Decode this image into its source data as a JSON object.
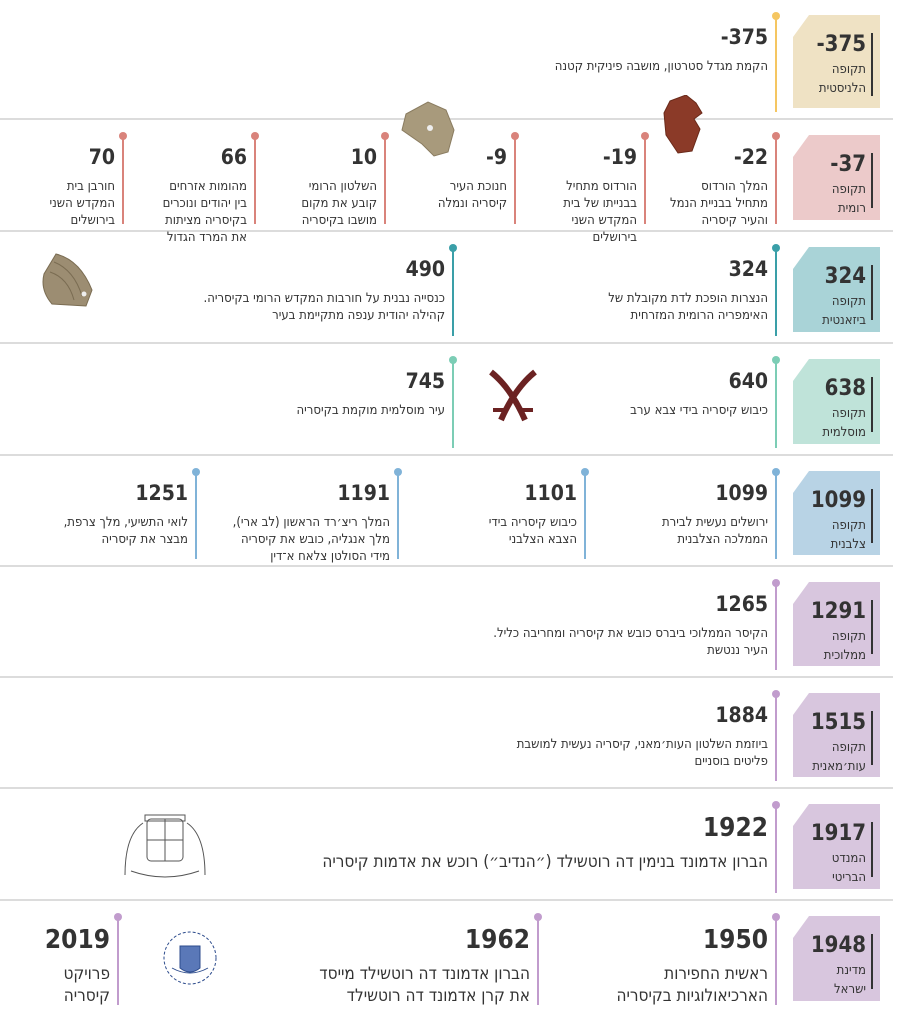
{
  "rows": [
    {
      "period": {
        "year": "-375",
        "label": "תקופה\nהלניסטית"
      },
      "colors": {
        "box": "#efe2c4",
        "line": "#f5c661"
      },
      "events": [
        {
          "year": "-375",
          "text": "הקמת מגדל סטרטון, מושבה פיניקית קטנה"
        }
      ]
    },
    {
      "period": {
        "year": "-37",
        "label": "תקופה\nרומית"
      },
      "colors": {
        "box": "#eccaca",
        "line": "#d9837b"
      },
      "events": [
        {
          "year": "-22",
          "text": "המלך הורדוס\nמתחיל בבניית הנמל\nוהעיר קיסריה"
        },
        {
          "year": "-19",
          "text": "הורדוס מתחיל\nבבנייתו של בית\nהמקדש השני\nבירושלים"
        },
        {
          "year": "-9",
          "text": "חנוכת העיר\nקיסריה ונמלה"
        },
        {
          "year": "10",
          "text": "השלטון הרומי\nקובע את מקום\nמושבו בקיסריה"
        },
        {
          "year": "66",
          "text": "מהומות אזרחים\nבין יהודים ונוכרים\nבקיסריה מציתות\nאת המרד הגדול"
        },
        {
          "year": "70",
          "text": "חורבן בית\nהמקדש השני\nבירושלים"
        }
      ]
    },
    {
      "period": {
        "year": "324",
        "label": "תקופה\nביזאנטית"
      },
      "colors": {
        "box": "#a9d3d7",
        "line": "#3a9fa8"
      },
      "events": [
        {
          "year": "324",
          "text": "הנצרות הופכת לדת מקובלת של\nהאימפריה הרומית המזרחית"
        },
        {
          "year": "490",
          "text": "כנסייה נבנית על חורבות המקדש הרומי בקיסריה.\nקהילה יהודית ענפה מתקיימת בעיר"
        }
      ]
    },
    {
      "period": {
        "year": "638",
        "label": "תקופה\nמוסלמית\nקדומה"
      },
      "colors": {
        "box": "#bfe3d9",
        "line": "#7ccdb5"
      },
      "events": [
        {
          "year": "640",
          "text": "כיבוש קיסריה בידי צבא ערב"
        },
        {
          "year": "745",
          "text": "עיר מוסלמית מוקמת בקיסריה"
        }
      ]
    },
    {
      "period": {
        "year": "1099",
        "label": "תקופה\nצלבנית"
      },
      "colors": {
        "box": "#b8d3e5",
        "line": "#80b3d8"
      },
      "events": [
        {
          "year": "1099",
          "text": "ירושלים נעשית לבירת\nהממלכה הצלבנית"
        },
        {
          "year": "1101",
          "text": "כיבוש קיסריה בידי\nהצבא הצלבני"
        },
        {
          "year": "1191",
          "text": "המלך ריצ׳רד הראשון (לב ארי),\nמלך אנגליה, כובש את קיסריה\nמידי הסולטן צלאח א־דין"
        },
        {
          "year": "1251",
          "text": "לואי התשיעי, מלך צרפת,\nמבצר את קיסריה"
        }
      ]
    },
    {
      "period": {
        "year": "1291",
        "label": "תקופה\nממלוכית"
      },
      "colors": {
        "box": "#d8c6de",
        "line": "#c19ccd"
      },
      "events": [
        {
          "year": "1265",
          "text": "הקיסר הממלוכי ביברס כובש את קיסריה ומחריבה כליל.\nהעיר ננטשת"
        }
      ]
    },
    {
      "period": {
        "year": "1515",
        "label": "תקופה\nעות׳מאנית"
      },
      "colors": {
        "box": "#d8c6de",
        "line": "#c19ccd"
      },
      "events": [
        {
          "year": "1884",
          "text": "ביוזמת השלטון העות׳מאני, קיסריה נעשית למושבת\nפליטים בוסניים"
        }
      ]
    },
    {
      "period": {
        "year": "1917",
        "label": "המנדט\nהבריטי"
      },
      "colors": {
        "box": "#d8c6de",
        "line": "#c19ccd"
      },
      "events": [
        {
          "year": "1922",
          "text": "הברון אדמונד בנימין דה רוטשילד (״הנדיב״) רוכש את אדמות קיסריה"
        }
      ]
    },
    {
      "period": {
        "year": "1948",
        "label": "מדינת\nישראל"
      },
      "colors": {
        "box": "#d8c6de",
        "line": "#c19ccd"
      },
      "events": [
        {
          "year": "1950",
          "text": "ראשית החפירות\nהארכיאולוגיות בקיסריה"
        },
        {
          "year": "1962",
          "text": "הברון אדמונד דה רוטשילד מייסד\nאת קרן אדמונד דה רוטשילד"
        },
        {
          "year": "2019",
          "text": "פרויקט\nקיסריה"
        }
      ]
    }
  ],
  "logo": {
    "text": "EDMOND DE ROTHSCHILD FOUNDATION"
  }
}
